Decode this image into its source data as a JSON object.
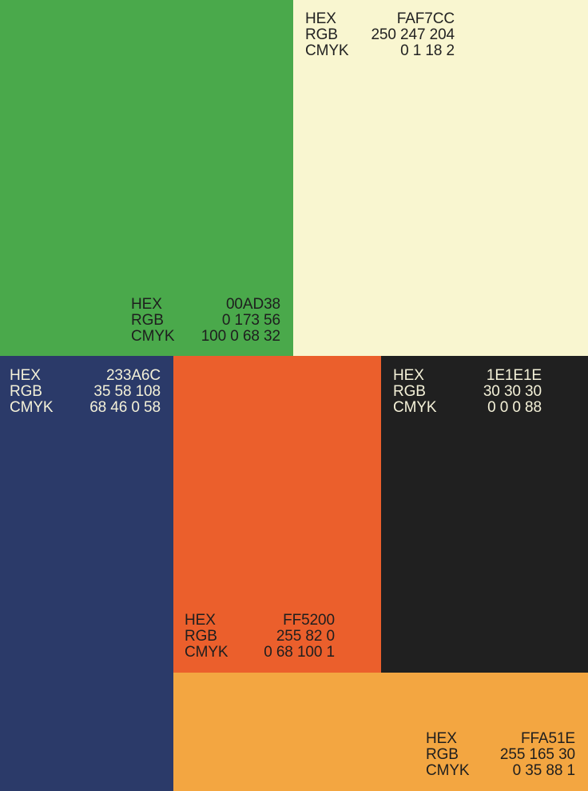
{
  "swatches": {
    "green": {
      "color": "#4aa94b",
      "hex_label": "HEX",
      "hex": "00AD38",
      "rgb_label": "RGB",
      "rgb": "0 173 56",
      "cmyk_label": "CMYK",
      "cmyk": "100 0 68 32"
    },
    "cream": {
      "color": "#f9f6d0",
      "hex_label": "HEX",
      "hex": "FAF7CC",
      "rgb_label": "RGB",
      "rgb": "250 247 204",
      "cmyk_label": "CMYK",
      "cmyk": "0 1 18 2"
    },
    "navy": {
      "color": "#2b3a69",
      "hex_label": "HEX",
      "hex": "233A6C",
      "rgb_label": "RGB",
      "rgb": "35 58 108",
      "cmyk_label": "CMYK",
      "cmyk": "68 46 0 58"
    },
    "orange": {
      "color": "#eb5f2c",
      "hex_label": "HEX",
      "hex": "FF5200",
      "rgb_label": "RGB",
      "rgb": "255 82 0",
      "cmyk_label": "CMYK",
      "cmyk": "0 68 100 1"
    },
    "black": {
      "color": "#202020",
      "hex_label": "HEX",
      "hex": "1E1E1E",
      "rgb_label": "RGB",
      "rgb": "30 30 30",
      "cmyk_label": "CMYK",
      "cmyk": "0 0 0 88"
    },
    "yellow": {
      "color": "#f3a641",
      "hex_label": "HEX",
      "hex": "FFA51E",
      "rgb_label": "RGB",
      "rgb": "255 165 30",
      "cmyk_label": "CMYK",
      "cmyk": "0 35 88 1"
    }
  }
}
